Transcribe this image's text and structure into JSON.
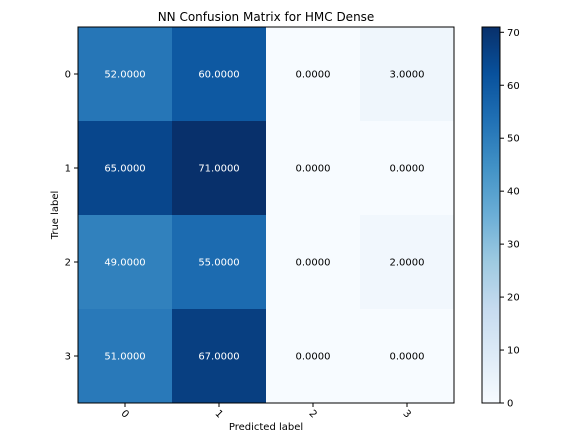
{
  "chart_data": {
    "type": "heatmap",
    "title": "NN Confusion Matrix for HMC Dense",
    "xlabel": "Predicted label",
    "ylabel": "True label",
    "x_tick_labels": [
      "0",
      "1",
      "2",
      "3"
    ],
    "y_tick_labels": [
      "0",
      "1",
      "2",
      "3"
    ],
    "values": [
      [
        52,
        60,
        0,
        3
      ],
      [
        65,
        71,
        0,
        0
      ],
      [
        49,
        55,
        0,
        2
      ],
      [
        51,
        67,
        0,
        0
      ]
    ],
    "cell_labels": [
      [
        "52.0000",
        "60.0000",
        "0.0000",
        "3.0000"
      ],
      [
        "65.0000",
        "71.0000",
        "0.0000",
        "0.0000"
      ],
      [
        "49.0000",
        "55.0000",
        "0.0000",
        "2.0000"
      ],
      [
        "51.0000",
        "67.0000",
        "0.0000",
        "0.0000"
      ]
    ],
    "colormap": "Blues",
    "color_range": [
      0,
      71
    ],
    "colorbar_ticks": [
      0,
      10,
      20,
      30,
      40,
      50,
      60,
      70
    ],
    "colorbar_tick_labels": [
      "0",
      "10",
      "20",
      "30",
      "40",
      "50",
      "60",
      "70"
    ],
    "grid": false,
    "x_tick_rotation_deg": 45
  }
}
